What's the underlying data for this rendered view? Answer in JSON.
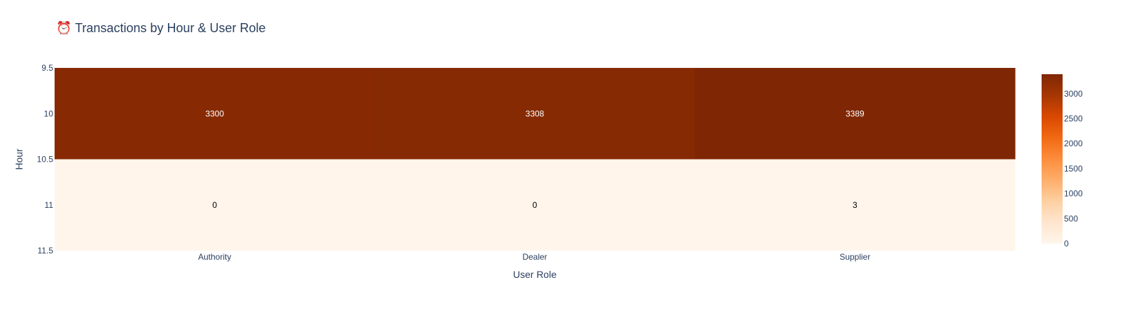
{
  "chart_data": {
    "type": "heatmap",
    "title": "⏰ Transactions by Hour & User Role",
    "xlabel": "User Role",
    "ylabel": "Hour",
    "categories": [
      "Authority",
      "Dealer",
      "Supplier"
    ],
    "y": [
      10,
      11
    ],
    "y_ticks": [
      "9.5",
      "10",
      "10.5",
      "11",
      "11.5"
    ],
    "y_tick_values": [
      9.5,
      10,
      10.5,
      11,
      11.5
    ],
    "ylim": [
      9.5,
      11.5
    ],
    "z": [
      [
        3300,
        3308,
        3389
      ],
      [
        0,
        0,
        3
      ]
    ],
    "colorscale": "Oranges",
    "colorscale_stops": [
      "#fff5eb",
      "#fee6ce",
      "#fdd0a2",
      "#fdae6b",
      "#fd8d3c",
      "#f16913",
      "#d94801",
      "#a63603",
      "#7f2704"
    ],
    "zlim": [
      0,
      3389
    ],
    "colorbar_ticks": [
      0,
      500,
      1000,
      1500,
      2000,
      2500,
      3000
    ],
    "colorbar_tick_labels": [
      "0",
      "500",
      "1000",
      "1500",
      "2000",
      "2500",
      "3000"
    ],
    "text_colors": {
      "dark_cell": "#ffffff",
      "light_cell": "#000000"
    }
  }
}
